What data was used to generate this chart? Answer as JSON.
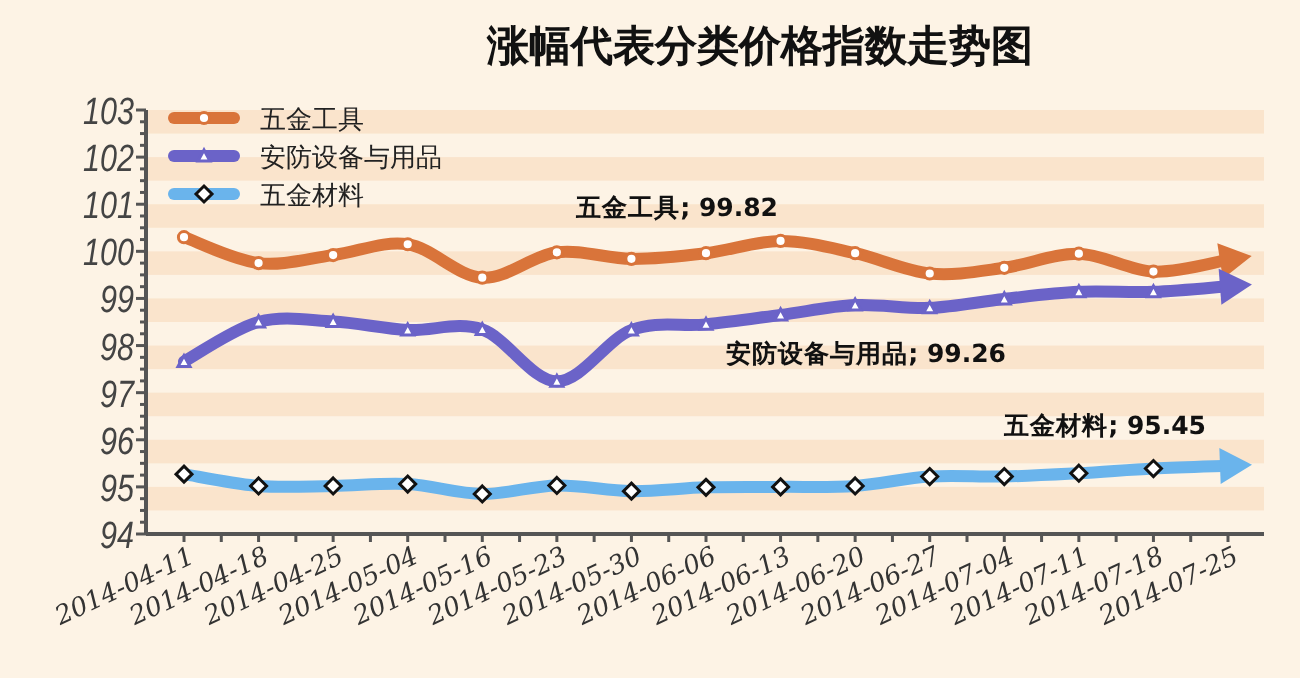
{
  "chart_data": {
    "type": "line",
    "title": "涨幅代表分类价格指数走势图",
    "categories": [
      "2014-04-11",
      "2014-04-18",
      "2014-04-25",
      "2014-05-04",
      "2014-05-16",
      "2014-05-23",
      "2014-05-30",
      "2014-06-06",
      "2014-06-13",
      "2014-06-20",
      "2014-06-27",
      "2014-07-04",
      "2014-07-11",
      "2014-07-18",
      "2014-07-25"
    ],
    "series": [
      {
        "name": "五金工具",
        "color": "#d9743a",
        "marker": "circle",
        "values": [
          100.3,
          99.75,
          99.92,
          100.15,
          99.44,
          99.98,
          99.84,
          99.96,
          100.22,
          99.96,
          99.53,
          99.65,
          99.95,
          99.57,
          99.82
        ]
      },
      {
        "name": "安防设备与用品",
        "color": "#6b63c8",
        "marker": "triangle",
        "values": [
          97.66,
          98.5,
          98.51,
          98.33,
          98.34,
          97.24,
          98.33,
          98.45,
          98.65,
          98.86,
          98.8,
          98.99,
          99.14,
          99.14,
          99.26
        ]
      },
      {
        "name": "五金材料",
        "color": "#6ab4ec",
        "marker": "diamond",
        "values": [
          95.27,
          95.02,
          95.02,
          95.06,
          94.85,
          95.03,
          94.91,
          94.99,
          95.0,
          95.02,
          95.22,
          95.22,
          95.29,
          95.39,
          95.45
        ]
      }
    ],
    "annotations": [
      "五金工具; 99.82",
      "安防设备与用品; 99.26",
      "五金材料; 95.45"
    ],
    "ylim": [
      94,
      103
    ],
    "yticks": [
      94,
      95,
      96,
      97,
      98,
      99,
      100,
      101,
      102,
      103
    ],
    "legend": "top left",
    "grid": false,
    "line_style": "solid"
  }
}
